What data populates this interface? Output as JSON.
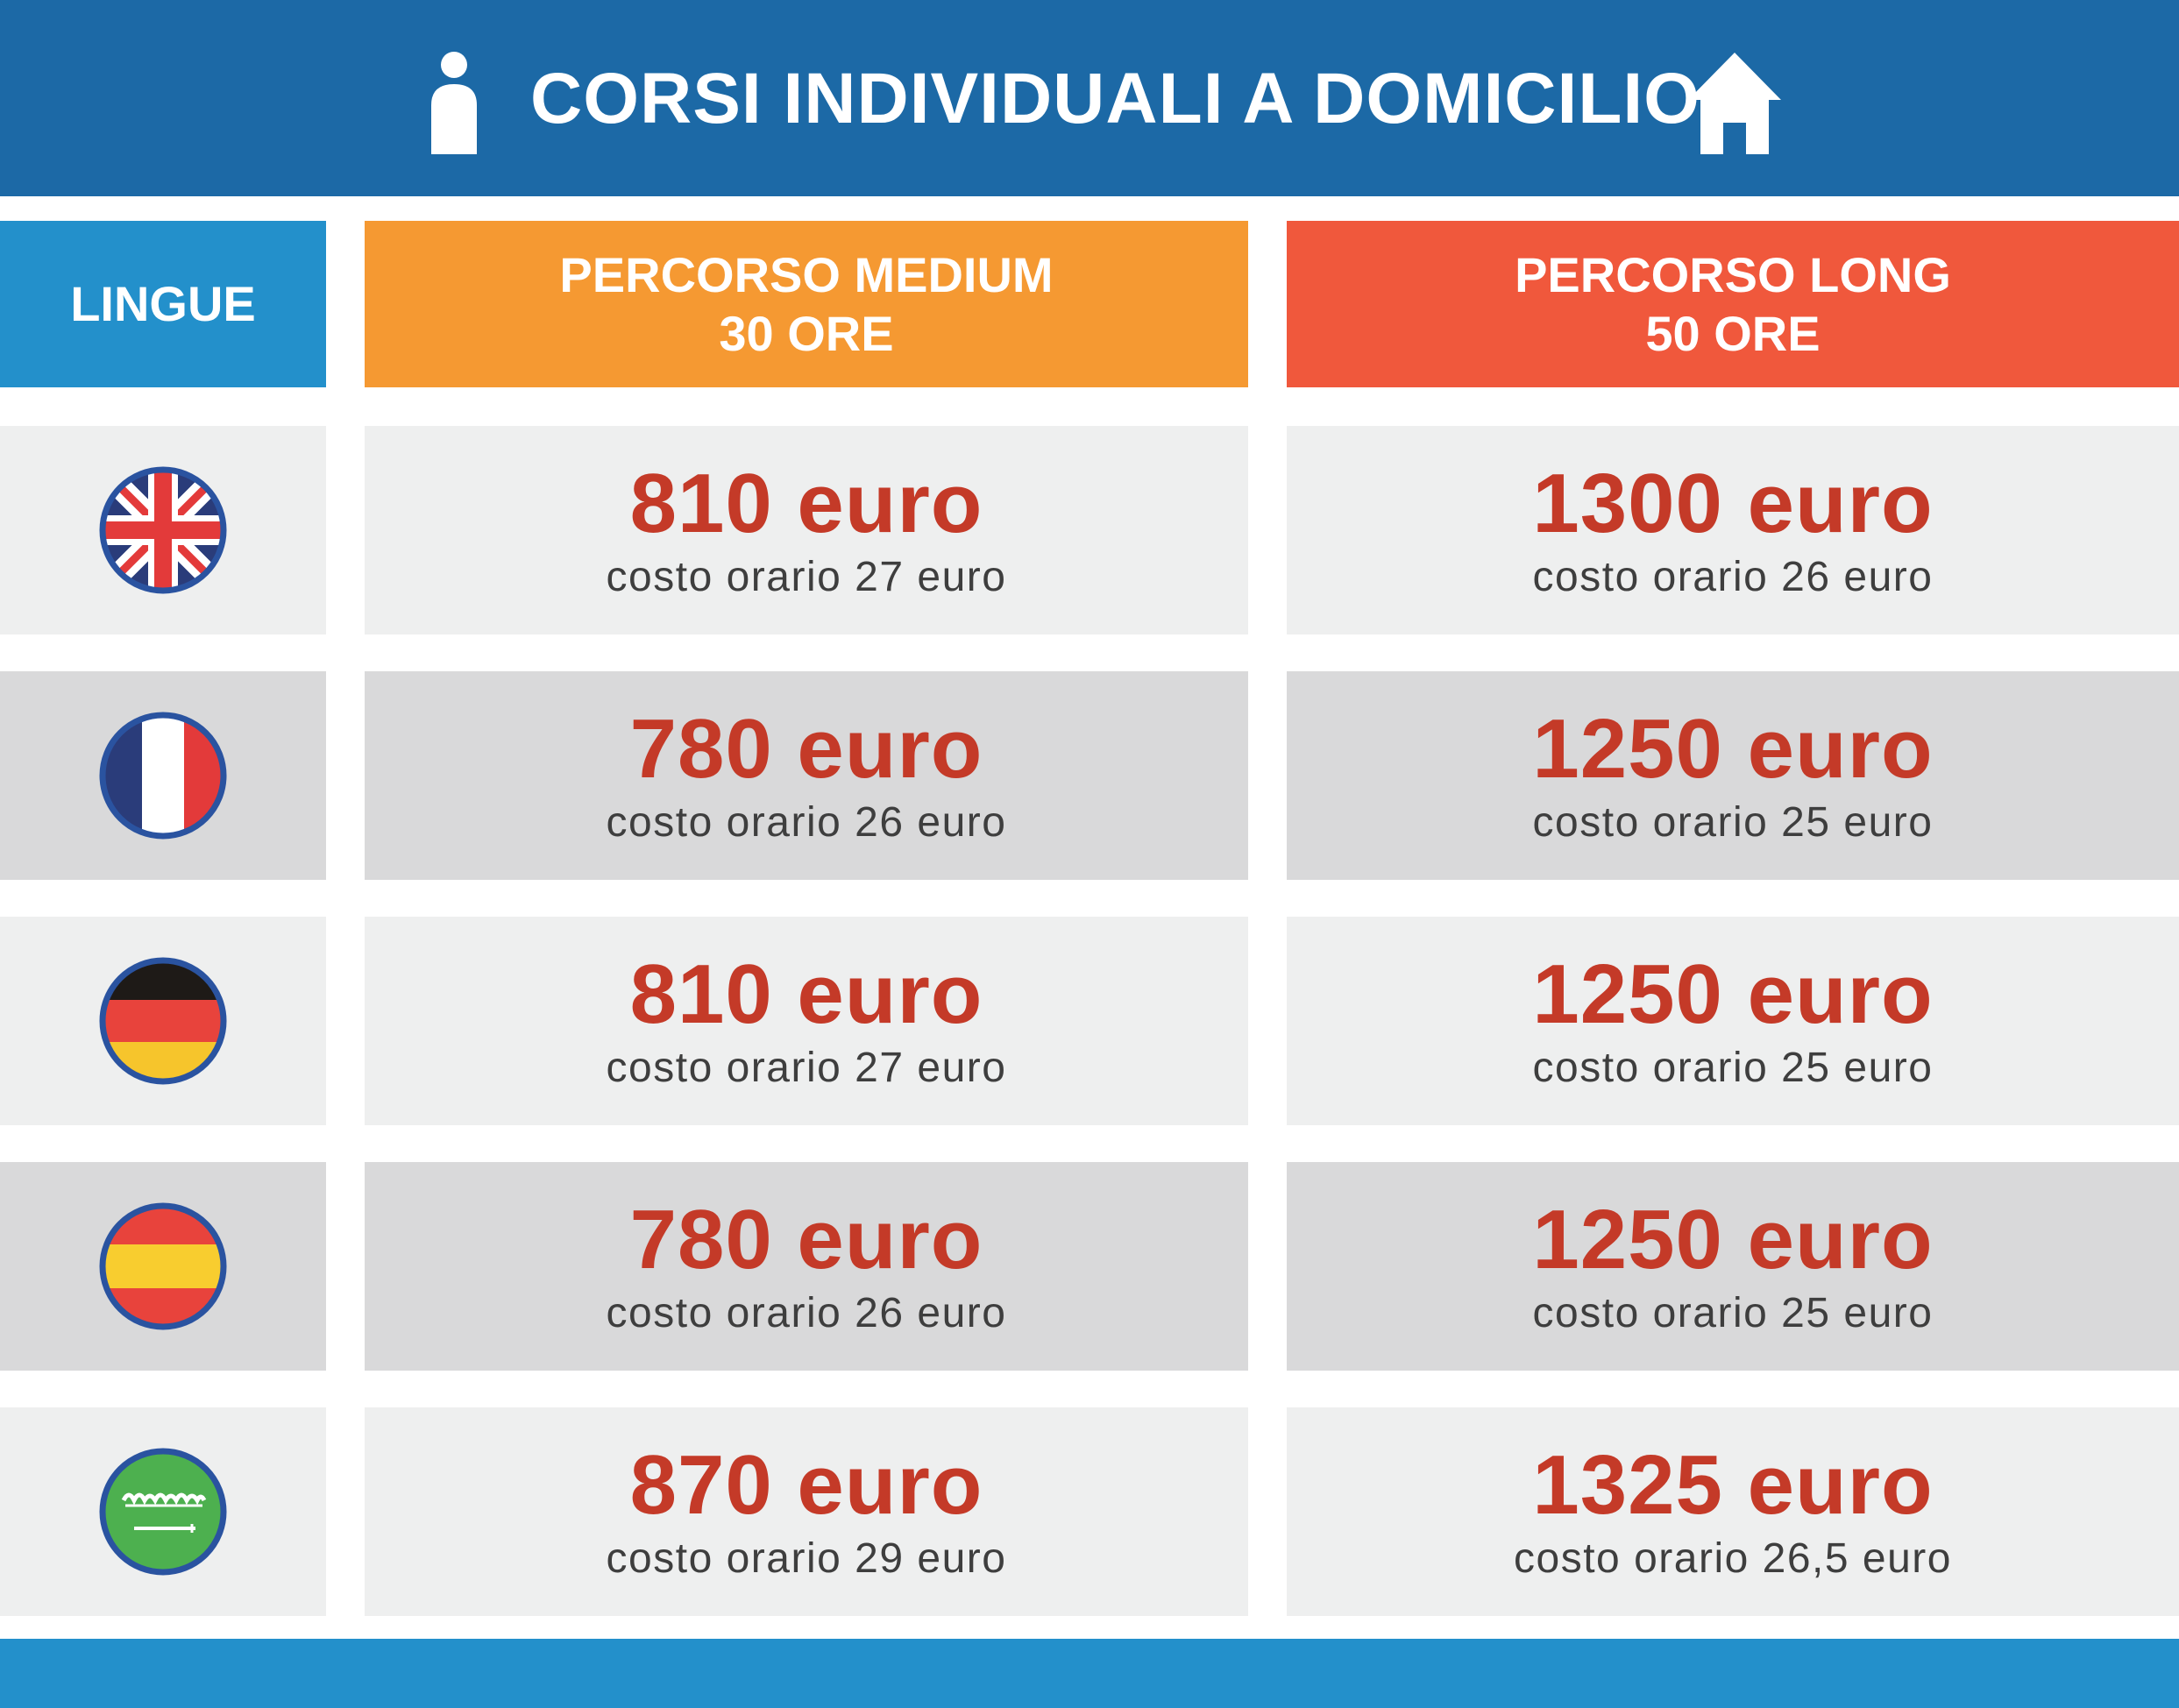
{
  "header": {
    "title": "CORSI INDIVIDUALI A DOMICILIO",
    "left_icon": "person-icon",
    "right_icon": "home-icon",
    "background": "#1c69a6"
  },
  "columns": {
    "lingue": {
      "label": "LINGUE",
      "color": "#2390cb"
    },
    "medium": {
      "line1": "PERCORSO MEDIUM",
      "line2": "30 ORE",
      "color": "#f59932"
    },
    "long": {
      "line1": "PERCORSO LONG",
      "line2": "50 ORE",
      "color": "#f0583c"
    }
  },
  "rows": [
    {
      "flag": "uk-flag-icon",
      "medium": {
        "price": "810 euro",
        "rate": "costo orario 27 euro"
      },
      "long": {
        "price": "1300 euro",
        "rate": "costo orario 26 euro"
      }
    },
    {
      "flag": "france-flag-icon",
      "medium": {
        "price": "780 euro",
        "rate": "costo orario 26 euro"
      },
      "long": {
        "price": "1250 euro",
        "rate": "costo orario 25 euro"
      }
    },
    {
      "flag": "germany-flag-icon",
      "medium": {
        "price": "810 euro",
        "rate": "costo orario 27 euro"
      },
      "long": {
        "price": "1250 euro",
        "rate": "costo orario 25 euro"
      }
    },
    {
      "flag": "spain-flag-icon",
      "medium": {
        "price": "780 euro",
        "rate": "costo orario 26 euro"
      },
      "long": {
        "price": "1250 euro",
        "rate": "costo orario 25 euro"
      }
    },
    {
      "flag": "saudi-arabia-flag-icon",
      "medium": {
        "price": "870 euro",
        "rate": "costo orario 29 euro"
      },
      "long": {
        "price": "1325 euro",
        "rate": "costo orario 26,5 euro"
      }
    }
  ],
  "colors": {
    "price": "#c43a28",
    "rate": "#3e3e3e",
    "row_light": "#eeefef",
    "row_dark": "#d9d9da",
    "footer": "#2390cb"
  }
}
